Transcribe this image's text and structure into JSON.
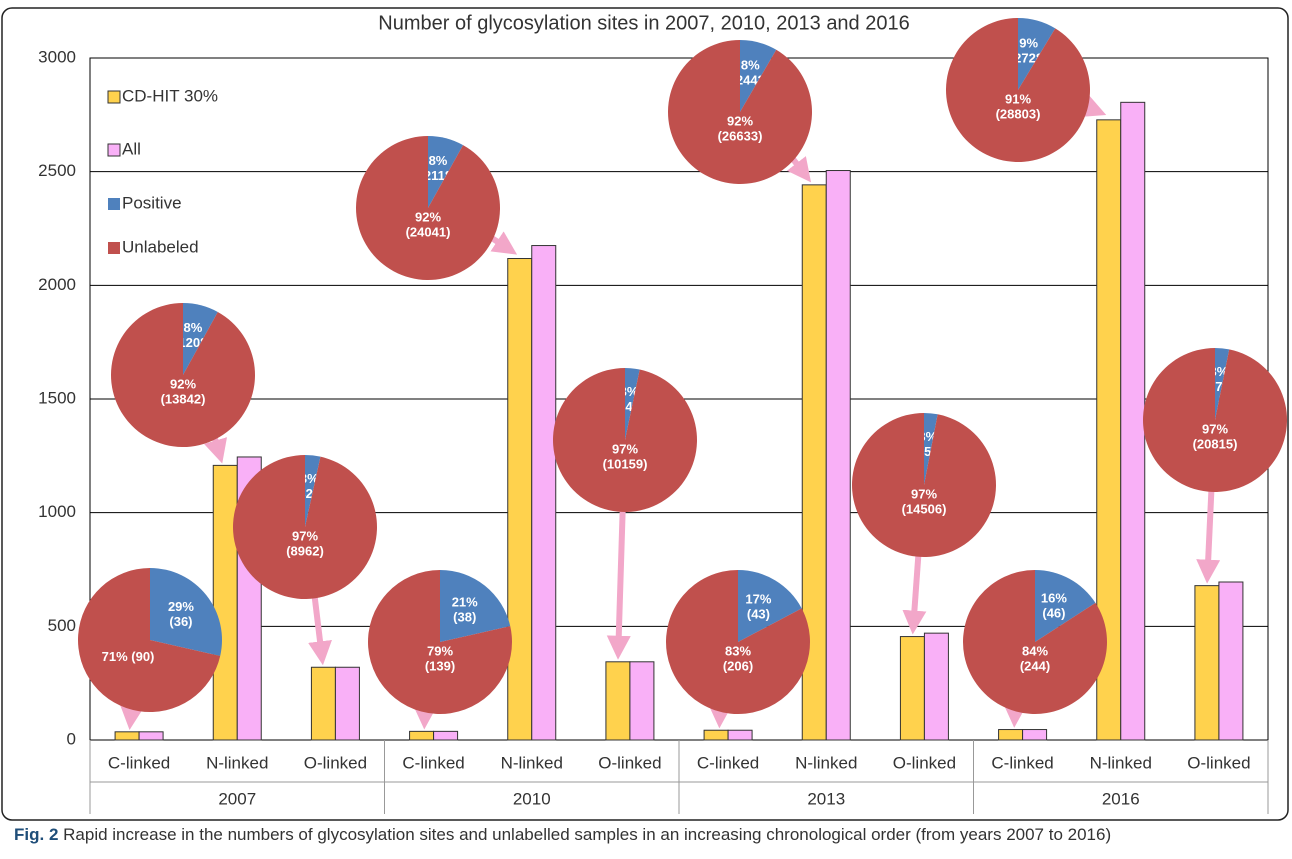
{
  "chart_data": {
    "type": "bar",
    "title": "Number of glycosylation sites in 2007, 2010, 2013 and 2016",
    "categories": [
      "C-linked",
      "N-linked",
      "O-linked",
      "C-linked",
      "N-linked",
      "O-linked",
      "C-linked",
      "N-linked",
      "O-linked",
      "C-linked",
      "N-linked",
      "O-linked"
    ],
    "group_labels": [
      "2007",
      "2010",
      "2013",
      "2016"
    ],
    "series": [
      {
        "name": "CD-HIT 30%",
        "color": "#ffd24d",
        "values": [
          36,
          1208,
          320,
          38,
          2118,
          344,
          43,
          2442,
          455,
          46,
          2728,
          679
        ]
      },
      {
        "name": "All",
        "color": "#f9b0f7",
        "values": [
          36,
          1245,
          320,
          38,
          2175,
          344,
          43,
          2505,
          470,
          46,
          2805,
          695
        ]
      }
    ],
    "pie_series": [
      {
        "name": "Positive",
        "color": "#4f81bd"
      },
      {
        "name": "Unlabeled",
        "color": "#c0504d"
      }
    ],
    "pies": [
      {
        "values": [
          36,
          90
        ],
        "value_labels": [
          "29%\n(36)",
          "71% (90)"
        ]
      },
      {
        "values": [
          1208,
          13842
        ],
        "value_labels": [
          "8%\n(1208)",
          "92%\n(13842)"
        ]
      },
      {
        "values": [
          320,
          8962
        ],
        "value_labels": [
          "3%\n(320)",
          "97%\n(8962)"
        ]
      },
      {
        "values": [
          38,
          139
        ],
        "value_labels": [
          "21%\n(38)",
          "79%\n(139)"
        ]
      },
      {
        "values": [
          2118,
          24041
        ],
        "value_labels": [
          "8%\n(2118)",
          "92%\n(24041)"
        ]
      },
      {
        "values": [
          344,
          10159
        ],
        "value_labels": [
          "3%\n(344)",
          "97%\n(10159)"
        ]
      },
      {
        "values": [
          43,
          206
        ],
        "value_labels": [
          "17%\n(43)",
          "83%\n(206)"
        ]
      },
      {
        "values": [
          2442,
          26633
        ],
        "value_labels": [
          "8%\n(2442)",
          "92%\n(26633)"
        ]
      },
      {
        "values": [
          455,
          14506
        ],
        "value_labels": [
          "3%\n(455)",
          "97%\n(14506)"
        ]
      },
      {
        "values": [
          46,
          244
        ],
        "value_labels": [
          "16%\n(46)",
          "84%\n(244)"
        ]
      },
      {
        "values": [
          2728,
          28803
        ],
        "value_labels": [
          "9%\n(2728)",
          "91%\n(28803)"
        ]
      },
      {
        "values": [
          679,
          20815
        ],
        "value_labels": [
          "3%\n(679)",
          "97%\n(20815)"
        ]
      }
    ],
    "ylim": [
      0,
      3000
    ],
    "yticks": [
      0,
      500,
      1000,
      1500,
      2000,
      2500,
      3000
    ],
    "grid": true,
    "legend": "top-left",
    "caption": {
      "label": "Fig. 2",
      "text": "Rapid increase in the numbers of glycosylation sites and unlabelled samples in an increasing chronological order (from years 2007 to 2016)"
    }
  }
}
